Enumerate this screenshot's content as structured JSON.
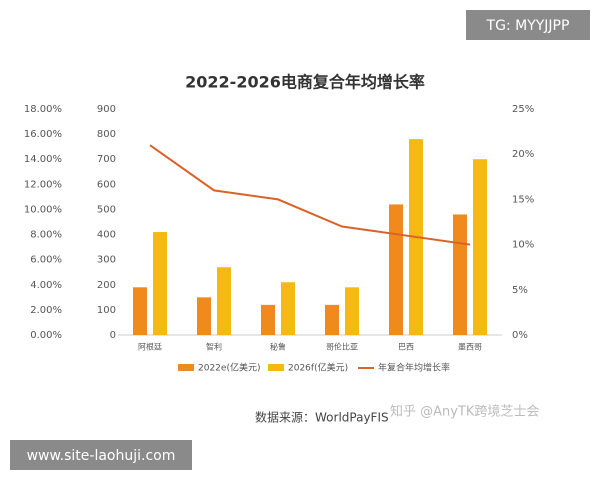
{
  "chart_data": {
    "type": "bar-line",
    "title": "2022-2026电商复合年均增长率",
    "categories": [
      "阿根廷",
      "智利",
      "秘鲁",
      "哥伦比亚",
      "巴西",
      "墨西哥"
    ],
    "series": [
      {
        "name": "2022e(亿美元)",
        "type": "bar",
        "color": "#f08a1c",
        "values": [
          190,
          150,
          120,
          120,
          520,
          480
        ]
      },
      {
        "name": "2026f(亿美元)",
        "type": "bar",
        "color": "#f5b914",
        "values": [
          410,
          270,
          210,
          190,
          780,
          700
        ]
      },
      {
        "name": "年复合年均增长率",
        "type": "line",
        "axis": "y2",
        "color": "#d9622b",
        "values": [
          21,
          16,
          15,
          12,
          11,
          10
        ]
      }
    ],
    "ylim": [
      0,
      900
    ],
    "yticks": [
      0,
      100,
      200,
      300,
      400,
      500,
      600,
      700,
      800,
      900
    ],
    "y2lim": [
      0,
      25
    ],
    "y2ticks": [
      {
        "value": 0,
        "label": "0%"
      },
      {
        "value": 5,
        "label": "5%"
      },
      {
        "value": 10,
        "label": "10%"
      },
      {
        "value": 15,
        "label": "15%"
      },
      {
        "value": 20,
        "label": "20%"
      },
      {
        "value": 25,
        "label": "25%"
      }
    ],
    "y3lim": [
      0,
      18
    ],
    "y3ticks": [
      {
        "value": 0,
        "label": "0.00%"
      },
      {
        "value": 2,
        "label": "2.00%"
      },
      {
        "value": 4,
        "label": "4.00%"
      },
      {
        "value": 6,
        "label": "6.00%"
      },
      {
        "value": 8,
        "label": "8.00%"
      },
      {
        "value": 10,
        "label": "10.00%"
      },
      {
        "value": 12,
        "label": "12.00%"
      },
      {
        "value": 14,
        "label": "14.00%"
      },
      {
        "value": 16,
        "label": "16.00%"
      },
      {
        "value": 18,
        "label": "18.00%"
      }
    ],
    "source": "数据来源：WorldPayFIS",
    "watermark": "知乎 @AnyTK跨境芝士会"
  },
  "overlays": {
    "top_right": "TG: MYYJJPP",
    "bottom_left": "www.site-laohuji.com"
  }
}
